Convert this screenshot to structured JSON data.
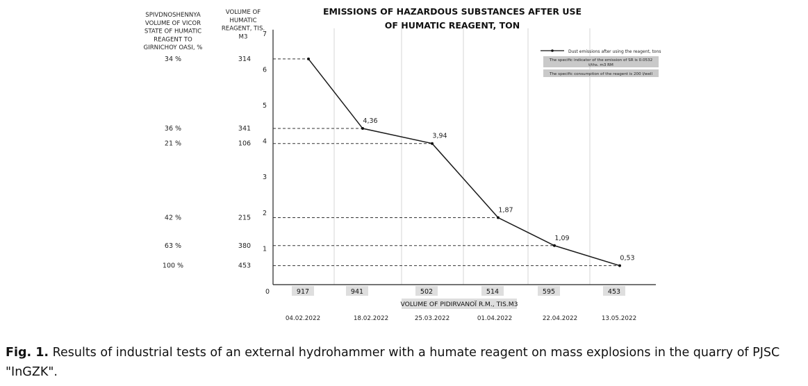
{
  "chart_data": {
    "type": "line",
    "title_lines": [
      "EMISSIONS OF HAZARDOUS SUBSTANCES AFTER USE",
      "OF HUMATIC REAGENT, TON"
    ],
    "left_col1_header": [
      "SPIVDNOSHENNYA",
      "VOLUME OF VICOR",
      "STATE OF HUMATIC",
      "REAGENT TO",
      "GIRNICHOY OASI, %"
    ],
    "left_col2_header": [
      "VOLUME OF",
      "HUMATIC",
      "REAGENT, TIS.",
      "M3"
    ],
    "ylim": [
      0,
      7
    ],
    "yticks": [
      "1",
      "2",
      "3",
      "4",
      "5",
      "6",
      "7"
    ],
    "origin_label": "0",
    "x_volumes": [
      "917",
      "941",
      "502",
      "514",
      "595",
      "453"
    ],
    "xlabel": "VOLUME OF PIDIRVANOÏ R.M., TIS.M3",
    "dates": [
      "04.02.2022",
      "18.02.2022",
      "25.03.2022",
      "01.04.2022",
      "22.04.2022",
      "13.05.2022"
    ],
    "series": [
      {
        "name": "Dust emissions after using the reagent, tons",
        "values": [
          6.3,
          4.36,
          3.94,
          1.87,
          1.09,
          0.53
        ],
        "labels": [
          "",
          "4,36",
          "3,94",
          "1,87",
          "1,09",
          "0,53"
        ]
      }
    ],
    "left_rows": [
      {
        "y": 6.3,
        "percent": "34 %",
        "volume": "314"
      },
      {
        "y": 4.36,
        "percent": "36 %",
        "volume": "341"
      },
      {
        "y": 3.94,
        "percent": "21 %",
        "volume": "106"
      },
      {
        "y": 1.87,
        "percent": "42 %",
        "volume": "215"
      },
      {
        "y": 1.09,
        "percent": "63 %",
        "volume": "380"
      },
      {
        "y": 0.53,
        "percent": "100 %",
        "volume": "453"
      }
    ],
    "legend": {
      "placement": "top-right",
      "series_label": "Dust emissions after using the reagent, tons",
      "notes": [
        [
          "The specific indicator of the emission of SR is 0.0532",
          "t/ths. m3 RM"
        ],
        [
          "The specific consumption of the reagent is 200 l/well"
        ]
      ]
    },
    "grid": "vertical"
  },
  "caption": {
    "label": "Fig. 1.",
    "text": " Results of industrial tests of an external hydrohammer with a humate reagent on mass explosions in the quarry of PJSC \"InGZK\"."
  }
}
